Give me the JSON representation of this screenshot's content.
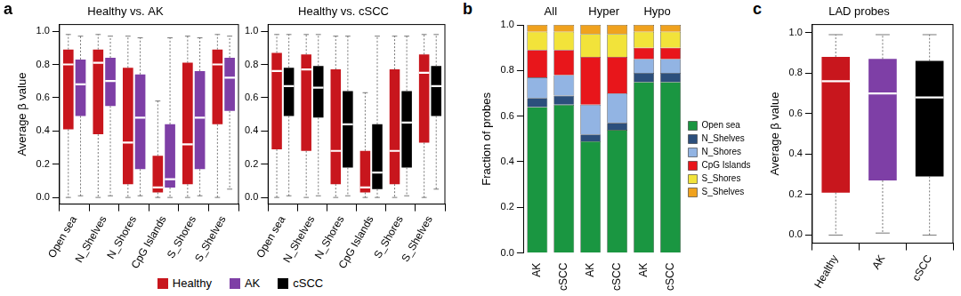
{
  "chart_data": [
    {
      "type": "boxplot",
      "panel": "a",
      "title": "Healthy vs. AK",
      "ylabel": "Average β value",
      "categories": [
        "Open sea",
        "N_Shelves",
        "N_Shores",
        "CpG Islands",
        "S_Shores",
        "S_Shelves"
      ],
      "ylim": [
        -0.04,
        1.04
      ],
      "yticks": [
        {
          "value": 0,
          "label": "0.0"
        },
        0.2,
        0.4,
        0.6,
        0.8,
        {
          "value": 1,
          "label": "1.0"
        }
      ],
      "legend": "bottom",
      "series": [
        {
          "name": "Healthy",
          "color": "#c8161d",
          "values": [
            {
              "min": 0.0,
              "q1": 0.41,
              "median": 0.8,
              "q3": 0.89,
              "max": 0.98
            },
            {
              "min": 0.0,
              "q1": 0.38,
              "median": 0.81,
              "q3": 0.89,
              "max": 0.98
            },
            {
              "min": 0.0,
              "q1": 0.08,
              "median": 0.33,
              "q3": 0.78,
              "max": 0.97
            },
            {
              "min": 0.0,
              "q1": 0.03,
              "median": 0.06,
              "q3": 0.25,
              "max": 0.58
            },
            {
              "min": 0.0,
              "q1": 0.08,
              "median": 0.32,
              "q3": 0.81,
              "max": 0.97
            },
            {
              "min": 0.0,
              "q1": 0.44,
              "median": 0.8,
              "q3": 0.89,
              "max": 0.98
            }
          ]
        },
        {
          "name": "AK",
          "color": "#7e3fa6",
          "values": [
            {
              "min": 0.01,
              "q1": 0.49,
              "median": 0.68,
              "q3": 0.83,
              "max": 0.97
            },
            {
              "min": 0.01,
              "q1": 0.55,
              "median": 0.7,
              "q3": 0.84,
              "max": 0.97
            },
            {
              "min": 0.01,
              "q1": 0.17,
              "median": 0.48,
              "q3": 0.74,
              "max": 0.96
            },
            {
              "min": 0.0,
              "q1": 0.06,
              "median": 0.11,
              "q3": 0.44,
              "max": 0.96
            },
            {
              "min": 0.01,
              "q1": 0.17,
              "median": 0.48,
              "q3": 0.76,
              "max": 0.96
            },
            {
              "min": 0.05,
              "q1": 0.52,
              "median": 0.72,
              "q3": 0.84,
              "max": 0.97
            }
          ]
        }
      ]
    },
    {
      "type": "boxplot",
      "title": "Healthy vs. cSCC",
      "categories": [
        "Open sea",
        "N_Shelves",
        "N_Shores",
        "CpG Islands",
        "S_Shores",
        "S_Shelves"
      ],
      "ylim": [
        -0.04,
        1.04
      ],
      "yticks": [
        {
          "value": 0,
          "label": "0.0"
        },
        0.2,
        0.4,
        0.6,
        0.8,
        {
          "value": 1,
          "label": "1.0"
        }
      ],
      "legend": "bottom",
      "series": [
        {
          "name": "Healthy",
          "color": "#c8161d",
          "values": [
            {
              "min": 0.0,
              "q1": 0.29,
              "median": 0.76,
              "q3": 0.87,
              "max": 0.98
            },
            {
              "min": 0.0,
              "q1": 0.28,
              "median": 0.77,
              "q3": 0.86,
              "max": 0.98
            },
            {
              "min": 0.0,
              "q1": 0.08,
              "median": 0.28,
              "q3": 0.77,
              "max": 0.97
            },
            {
              "min": 0.0,
              "q1": 0.03,
              "median": 0.06,
              "q3": 0.28,
              "max": 0.63
            },
            {
              "min": 0.0,
              "q1": 0.08,
              "median": 0.28,
              "q3": 0.77,
              "max": 0.97
            },
            {
              "min": 0.0,
              "q1": 0.33,
              "median": 0.75,
              "q3": 0.86,
              "max": 0.98
            }
          ]
        },
        {
          "name": "cSCC",
          "color": "#000000",
          "values": [
            {
              "min": 0.01,
              "q1": 0.49,
              "median": 0.67,
              "q3": 0.78,
              "max": 0.98
            },
            {
              "min": 0.01,
              "q1": 0.48,
              "median": 0.66,
              "q3": 0.79,
              "max": 0.98
            },
            {
              "min": 0.01,
              "q1": 0.18,
              "median": 0.44,
              "q3": 0.64,
              "max": 0.97
            },
            {
              "min": 0.0,
              "q1": 0.05,
              "median": 0.15,
              "q3": 0.44,
              "max": 0.97
            },
            {
              "min": 0.01,
              "q1": 0.18,
              "median": 0.45,
              "q3": 0.64,
              "max": 0.97
            },
            {
              "min": 0.05,
              "q1": 0.49,
              "median": 0.67,
              "q3": 0.79,
              "max": 0.98
            }
          ]
        }
      ]
    },
    {
      "type": "bar",
      "panel": "b",
      "stacked": true,
      "legend": "right",
      "ylabel": "Fraction of probes",
      "categories": [
        "AK",
        "cSCC",
        "AK",
        "cSCC",
        "AK",
        "cSCC"
      ],
      "annotations": [
        "All",
        "Hyper",
        "Hypo"
      ],
      "ylim": [
        0,
        1
      ],
      "yticks": [
        {
          "value": 0,
          "label": "0.0"
        },
        0.2,
        0.4,
        0.6,
        0.8,
        {
          "value": 1,
          "label": "1.0"
        }
      ],
      "series": [
        {
          "name": "Open sea",
          "color": "#1a9641",
          "values": [
            0.64,
            0.65,
            0.49,
            0.54,
            0.75,
            0.75
          ]
        },
        {
          "name": "N_Shelves",
          "color": "#2c4f7c",
          "values": [
            0.04,
            0.04,
            0.03,
            0.03,
            0.04,
            0.04
          ]
        },
        {
          "name": "N_Shores",
          "color": "#92b4e3",
          "values": [
            0.09,
            0.09,
            0.13,
            0.13,
            0.06,
            0.06
          ]
        },
        {
          "name": "CpG Islands",
          "color": "#e8161b",
          "values": [
            0.12,
            0.11,
            0.21,
            0.16,
            0.05,
            0.05
          ]
        },
        {
          "name": "S_Shores",
          "color": "#f2e33a",
          "values": [
            0.08,
            0.08,
            0.1,
            0.1,
            0.07,
            0.07
          ]
        },
        {
          "name": "S_Shelves",
          "color": "#f0a21e",
          "values": [
            0.03,
            0.03,
            0.04,
            0.04,
            0.03,
            0.03
          ]
        }
      ]
    },
    {
      "type": "boxplot",
      "panel": "c",
      "title": "LAD probes",
      "ylabel": "Average β value",
      "categories": [
        "Healthy",
        "AK",
        "cSCC"
      ],
      "ylim": [
        -0.04,
        1.04
      ],
      "yticks": [
        {
          "value": 0,
          "label": "0.0"
        },
        0.2,
        0.4,
        0.6,
        0.8,
        {
          "value": 1,
          "label": "1.0"
        }
      ],
      "colors": [
        "#c8161d",
        "#7e3fa6",
        "#000000"
      ],
      "values": [
        {
          "min": 0.0,
          "q1": 0.21,
          "median": 0.76,
          "q3": 0.88,
          "max": 0.99
        },
        {
          "min": 0.01,
          "q1": 0.27,
          "median": 0.7,
          "q3": 0.87,
          "max": 0.99
        },
        {
          "min": 0.0,
          "q1": 0.29,
          "median": 0.68,
          "q3": 0.86,
          "max": 0.99
        }
      ]
    }
  ]
}
